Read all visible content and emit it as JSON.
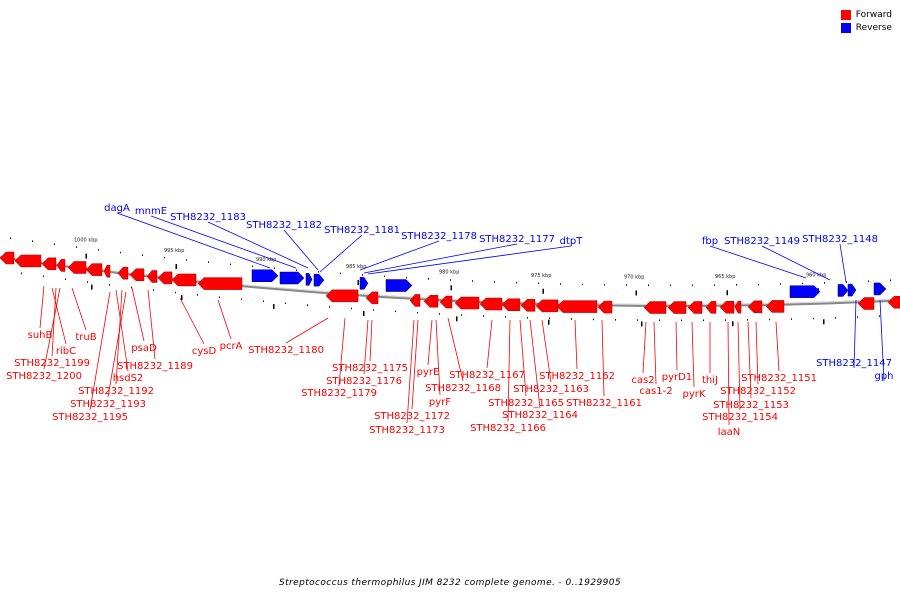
{
  "legend": {
    "forward_label": "Forward",
    "reverse_label": "Reverse",
    "forward_color": "#ff0000",
    "reverse_color": "#0000ff"
  },
  "caption": "Streptococcus thermophilus JIM 8232 complete genome. - 0..1929905",
  "ticks": [
    "1000 kbp",
    "995 kbp",
    "990 kbp",
    "985 kbp",
    "980 kbp",
    "975 kbp",
    "970 kbp",
    "965 kbp",
    "960 kbp"
  ],
  "reverse_labels": [
    "dagA",
    "mnmE",
    "STH8232_1183",
    "STH8232_1182",
    "STH8232_1181",
    "STH8232_1178",
    "STH8232_1177",
    "dtpT",
    "fbp",
    "STH8232_1149",
    "STH8232_1148",
    "STH8232_1147",
    "gph"
  ],
  "forward_labels": [
    "suhB",
    "ribC",
    "truB",
    "STH8232_1199",
    "STH8232_1200",
    "psaD",
    "hsdS2",
    "STH8232_1189",
    "STH8232_1192",
    "STH8232_1193",
    "STH8232_1195",
    "cysD",
    "pcrA",
    "STH8232_1180",
    "STH8232_1175",
    "STH8232_1176",
    "STH8232_1179",
    "pyrE",
    "STH8232_1168",
    "pyrF",
    "STH8232_1172",
    "STH8232_1173",
    "STH8232_1167",
    "STH8232_1165",
    "STH8232_1163",
    "STH8232_1164",
    "STH8232_1166",
    "STH8232_1162",
    "STH8232_1161",
    "cas2",
    "cas1-2",
    "pyrD1",
    "pyrK",
    "thiJ",
    "STH8232_1151",
    "STH8232_1152",
    "STH8232_1153",
    "STH8232_1154",
    "laaN"
  ]
}
